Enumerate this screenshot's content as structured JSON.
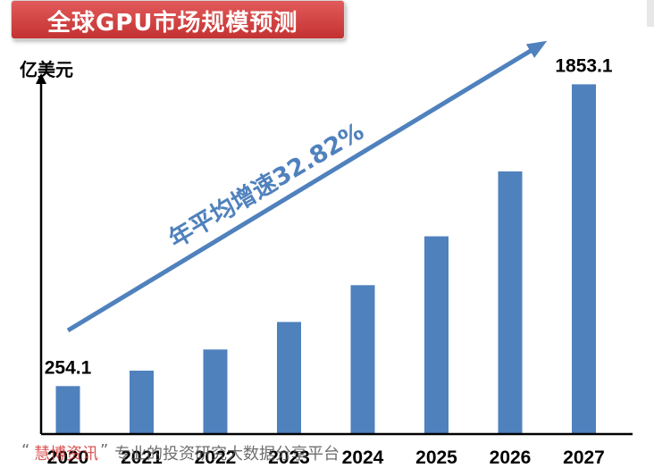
{
  "banner": {
    "title": "全球GPU市场规模预测"
  },
  "unit_label": "亿美元",
  "growth_annotation": "年平均增速32.82%",
  "watermark": {
    "quote_open": "“",
    "brand": "慧博资讯",
    "quote_close": "”",
    "text": "专业的投资研究大数据分享平台"
  },
  "chart_data": {
    "type": "bar",
    "title": "全球GPU市场规模预测",
    "ylabel": "亿美元",
    "xlabel": "",
    "categories": [
      "2020",
      "2021",
      "2022",
      "2023",
      "2024",
      "2025",
      "2026",
      "2027"
    ],
    "values": [
      254.1,
      336,
      448,
      594,
      789,
      1048,
      1392,
      1853.1
    ],
    "data_labels": [
      "254.1",
      "",
      "",
      "",
      "",
      "",
      "",
      "1853.1"
    ],
    "ylim": [
      0,
      2300
    ],
    "bar_color": "#4f81bd",
    "grid": false,
    "legend": "none",
    "annotation": {
      "text": "年平均增速32.82%",
      "type": "arrow",
      "color": "#4f81bd"
    }
  }
}
